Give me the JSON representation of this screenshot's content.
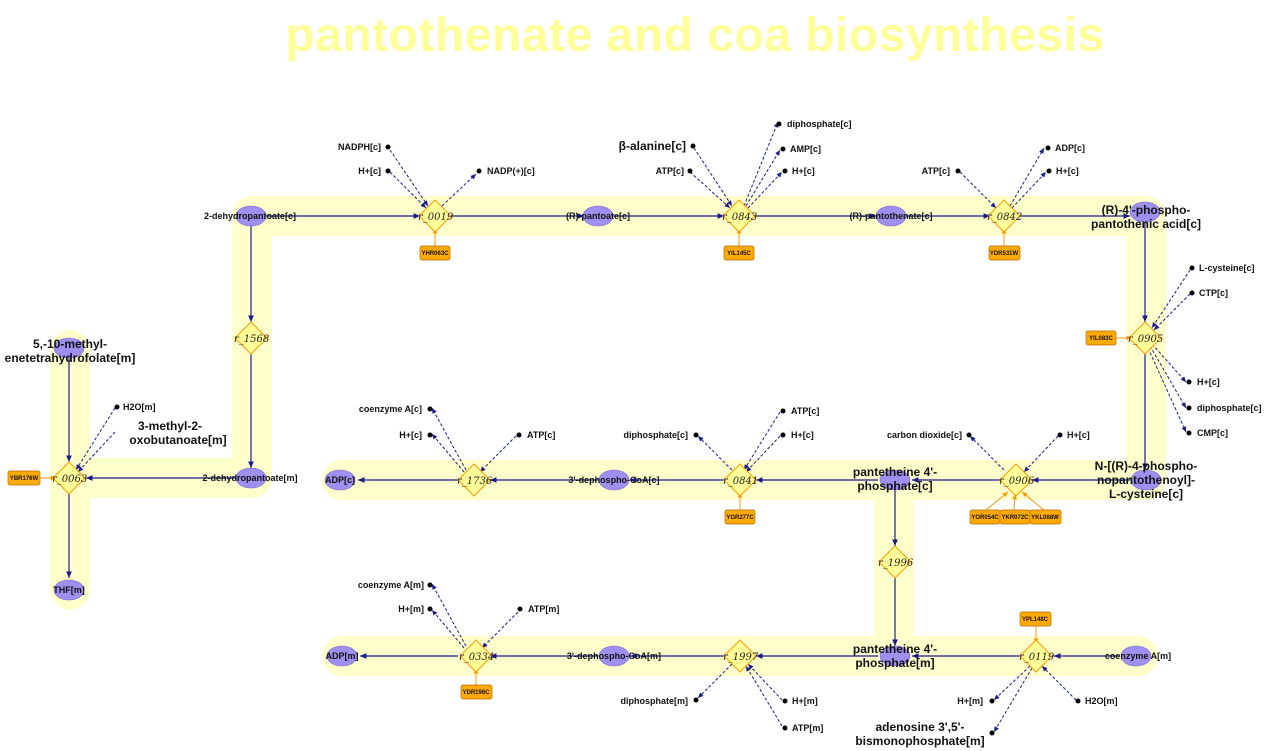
{
  "title": "pantothenate and coa biosynthesis",
  "colors": {
    "title": "#ffff99",
    "highlight": "#ffffcc",
    "metabolite": "#9f8ff0",
    "reaction": "#ffff99",
    "reaction_border": "#ff9900",
    "gene": "#ffaa00",
    "edge": "#1a1a8c"
  },
  "metabolites": {
    "dehydropantoate_c": "2-dehydropantoate[c]",
    "r_pantoate_c": "(R)-pantoate[c]",
    "r_pantothenate_c": "(R)-pantothenate[c]",
    "phosphopantothenic_l1": "(R)-4'-phospho-",
    "phosphopantothenic_l2": "pantothenic acid[c]",
    "methylenetetrahydrofolate_l1": "5,-10-methyl-",
    "methylenetetrahydrofolate_l2": "enetetrahydrofolate[m]",
    "methyl_oxobutanoate_l1": "3-methyl-2-",
    "methyl_oxobutanoate_l2": "oxobutanoate[m]",
    "dehydropantoate_m": "2-dehydropantoate[m]",
    "thf_m": "THF[m]",
    "adp_c": "ADP[c]",
    "dephospho_coa_c": "3'-dephospho-CoA[c]",
    "pantetheine_phosphate_c_l1": "pantetheine 4'-",
    "pantetheine_phosphate_c_l2": "phosphate[c]",
    "phosphopantothenoyl_cys_l1": "N-[(R)-4-phospho-",
    "phosphopantothenoyl_cys_l2": "nopantothenoyl]-",
    "phosphopantothenoyl_cys_l3": "L-cysteine[c]",
    "adp_m": "ADP[m]",
    "dephospho_coa_m": "3'-dephospho-CoA[m]",
    "pantetheine_phosphate_m_l1": "pantetheine 4'-",
    "pantetheine_phosphate_m_l2": "phosphate[m]",
    "coenzyme_a_m": "coenzyme A[m]"
  },
  "side_metabolites": {
    "nadph_c": "NADPH[c]",
    "h_c": "H+[c]",
    "nadp_c": "NADP(+)[c]",
    "beta_alanine_c": "β-alanine[c]",
    "atp_c": "ATP[c]",
    "diphosphate_c": "diphosphate[c]",
    "amp_c": "AMP[c]",
    "adp_c": "ADP[c]",
    "l_cysteine_c": "L-cysteine[c]",
    "ctp_c": "CTP[c]",
    "cmp_c": "CMP[c]",
    "h2o_m": "H2O[m]",
    "coenzyme_a_c": "coenzyme A[c]",
    "carbon_dioxide_c": "carbon dioxide[c]",
    "coenzyme_a_m": "coenzyme A[m]",
    "h_m": "H+[m]",
    "atp_m": "ATP[m]",
    "diphosphate_m": "diphosphate[m]",
    "adenosine_bisphosphate_l1": "adenosine 3',5'-",
    "adenosine_bisphosphate_l2": "bismonophosphate[m]"
  },
  "reactions": {
    "r0019": "r_0019",
    "r0843": "r_0843",
    "r0842": "r_0842",
    "r1568": "r_1568",
    "r0905": "r_0905",
    "r0063": "r_0063",
    "r1736": "r_1736",
    "r0841": "r_0841",
    "r0906": "r_0906",
    "r1996": "r_1996",
    "r0334": "r_0334",
    "r1997": "r_1997",
    "r0119": "r_0119"
  },
  "genes": {
    "yhr063c": "YHR063C",
    "yil145c": "YIL145C",
    "ydr531w": "YDR531W",
    "yil083c": "YIL083C",
    "ybr176w": "YBR176W",
    "ygr277c": "YGR277C",
    "yor054c": "YOR054C",
    "ykr072c": "YKR072C",
    "ykl088w": "YKL088W",
    "ydr196c": "YDR196C",
    "ypl148c": "YPL148C"
  }
}
